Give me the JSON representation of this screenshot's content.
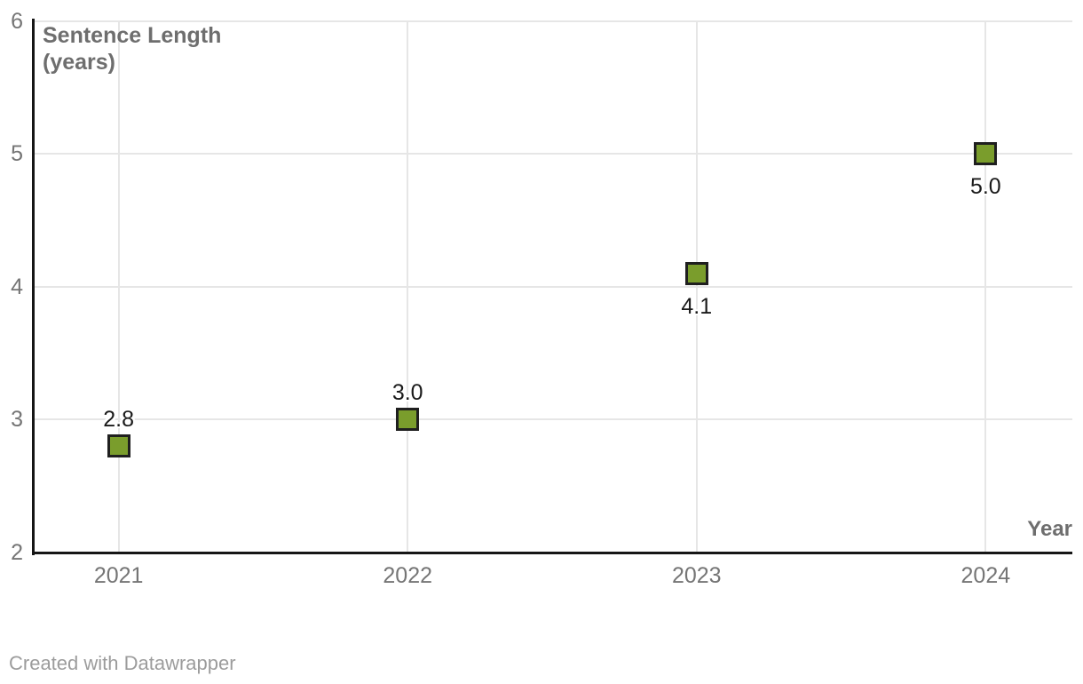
{
  "chart": {
    "y_axis_title_line1": "Sentence Length",
    "y_axis_title_line2": "(years)",
    "x_axis_title": "Year"
  },
  "chart_data": {
    "type": "scatter",
    "x": [
      2021,
      2022,
      2023,
      2024
    ],
    "series": [
      {
        "name": "Sentence Length (years)",
        "values": [
          2.8,
          3.0,
          4.1,
          5.0
        ]
      }
    ],
    "point_labels": [
      "2.8",
      "3.0",
      "4.1",
      "5.0"
    ],
    "point_label_placement": [
      "above",
      "above",
      "below",
      "below"
    ],
    "title": "",
    "xlabel": "Year",
    "ylabel": "Sentence Length (years)",
    "xlim": [
      2020.7,
      2024.3
    ],
    "ylim": [
      2,
      6
    ],
    "x_ticks": [
      "2021",
      "2022",
      "2023",
      "2024"
    ],
    "y_ticks": [
      2,
      3,
      4,
      5,
      6
    ],
    "grid": true,
    "legend": "none",
    "marker": "square"
  },
  "footer": {
    "credit": "Created with Datawrapper"
  },
  "colors": {
    "background": "#ffffff",
    "gridline": "#e6e6e6",
    "axis_line": "#161616",
    "tick_label": "#757575",
    "axis_title": "#6e6e6e",
    "data_label": "#1a1a1a",
    "credit": "#9c9c9c",
    "marker_fill": "#7a9d2c",
    "marker_stroke": "#1f1f1f"
  }
}
